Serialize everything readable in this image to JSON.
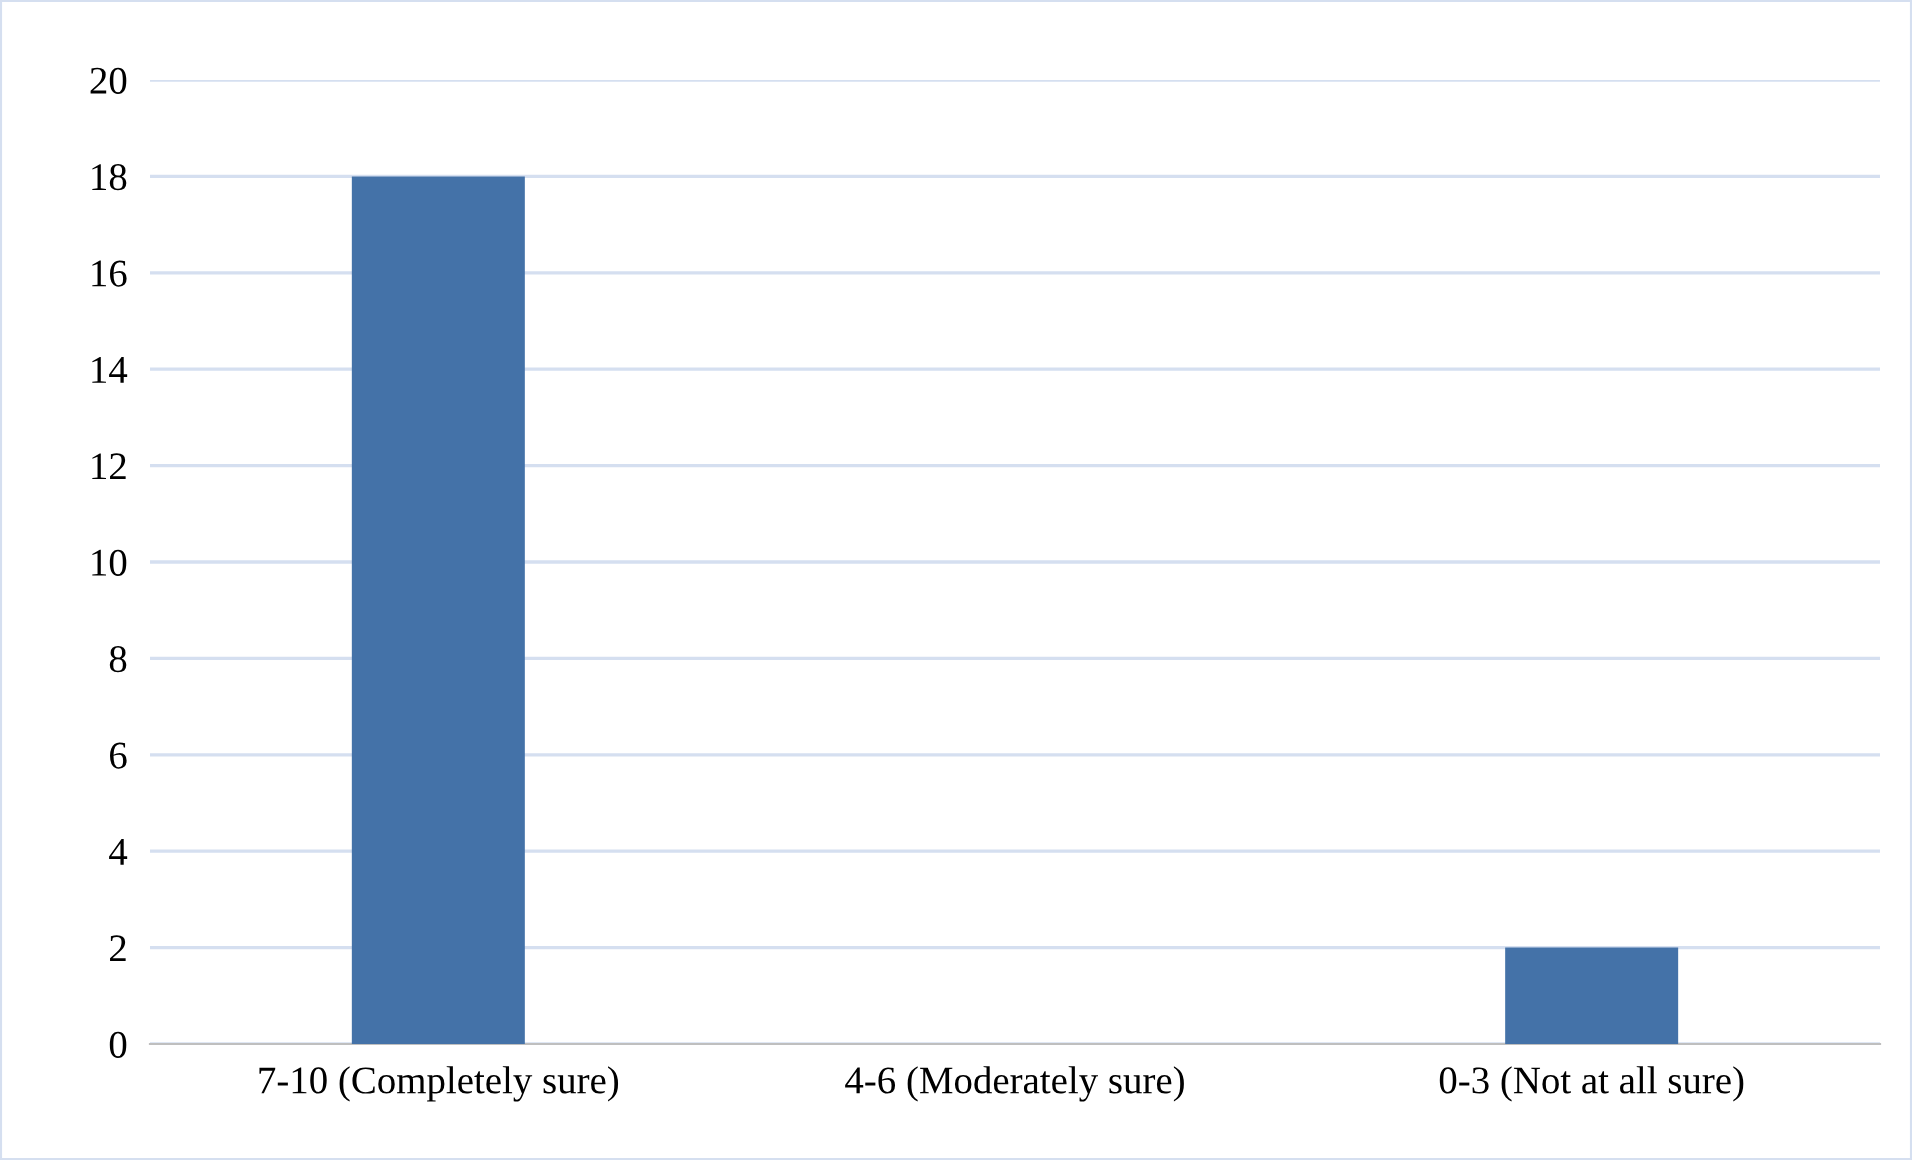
{
  "chart_data": {
    "type": "bar",
    "categories": [
      "7-10 (Completely sure)",
      "4-6 (Moderately sure)",
      "0-3 (Not at all sure)"
    ],
    "values": [
      18,
      0,
      2
    ],
    "color": "#4472a8",
    "ylim": [
      0,
      20
    ],
    "yticks": [
      0,
      2,
      4,
      6,
      8,
      10,
      12,
      14,
      16,
      18,
      20
    ],
    "grid": "y"
  }
}
